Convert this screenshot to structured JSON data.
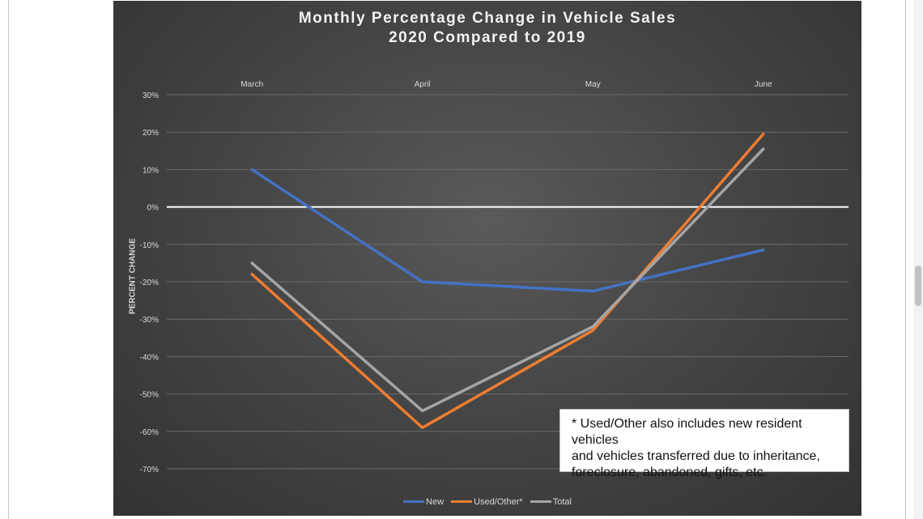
{
  "chart_data": {
    "type": "line",
    "title": "Monthly Percentage Change in Vehicle Sales",
    "subtitle": "2020 Compared to 2019",
    "xlabel": "",
    "ylabel": "PERCENT CHANGE",
    "categories": [
      "March",
      "April",
      "May",
      "June"
    ],
    "x_axis_position": "top",
    "ylim": [
      -70,
      30
    ],
    "y_ticks": [
      30,
      20,
      10,
      0,
      -10,
      -20,
      -30,
      -40,
      -50,
      -60,
      -70
    ],
    "y_tick_labels": [
      "30%",
      "20%",
      "10%",
      "0%",
      "-10%",
      "-20%",
      "-30%",
      "-40%",
      "-50%",
      "-60%",
      "-70%"
    ],
    "grid": true,
    "legend_position": "bottom",
    "series": [
      {
        "name": "New",
        "color": "#4472c4",
        "values": [
          10,
          -20,
          -22.5,
          -11.5
        ]
      },
      {
        "name": "Used/Other*",
        "color": "#ed7d31",
        "values": [
          -18,
          -59,
          -33,
          19.5
        ]
      },
      {
        "name": "Total",
        "color": "#a5a5a5",
        "values": [
          -15,
          -54.5,
          -32,
          15.5
        ]
      }
    ],
    "annotation": {
      "lines": [
        "* Used/Other also includes new resident vehicles",
        "and vehicles transferred due to inheritance,",
        "foreclosure, abandoned, gifts, etc."
      ]
    }
  },
  "colors": {
    "panel_background": "#464646",
    "gridline": "#6a6a6a",
    "zero_line": "#ffffff",
    "text": "#d9d9d9"
  }
}
